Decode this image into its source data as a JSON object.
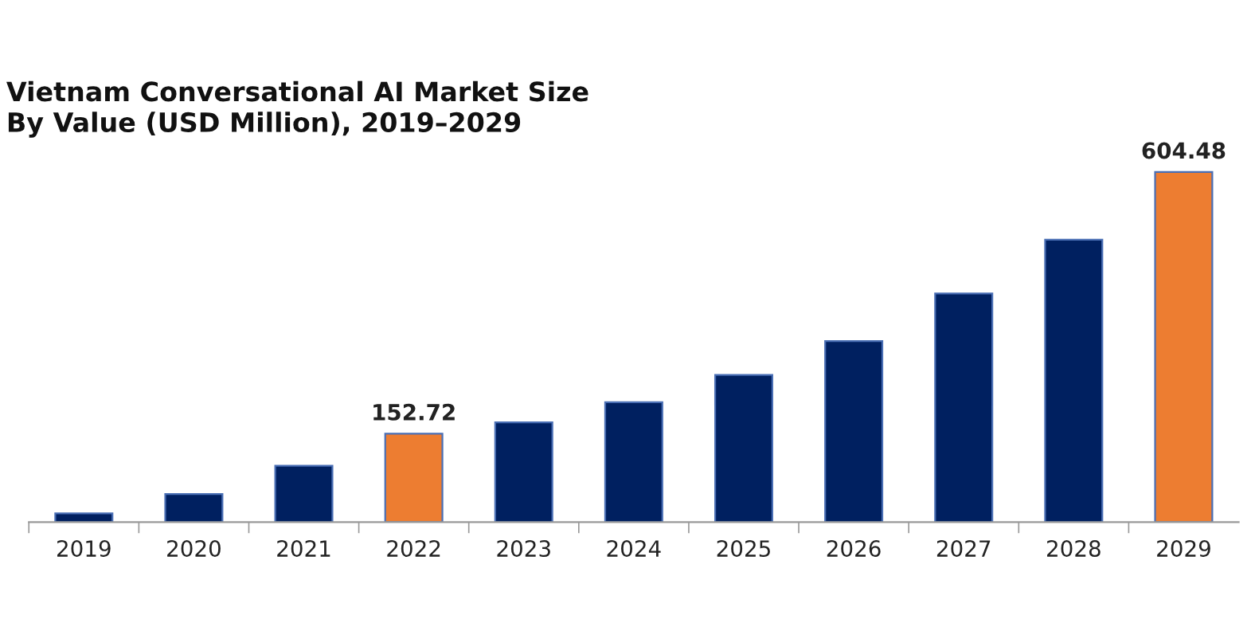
{
  "chart_data": {
    "type": "bar",
    "title": "Vietnam Conversational AI Market Size\nBy Value (USD Million), 2019–2029",
    "categories": [
      "2019",
      "2020",
      "2021",
      "2022",
      "2023",
      "2024",
      "2025",
      "2026",
      "2027",
      "2028",
      "2029"
    ],
    "values": [
      15.1,
      48.5,
      97.3,
      152.72,
      172.3,
      206.9,
      254.1,
      312.5,
      394.6,
      487.7,
      604.48
    ],
    "colors": [
      "#002060",
      "#002060",
      "#002060",
      "#ed7d31",
      "#002060",
      "#002060",
      "#002060",
      "#002060",
      "#002060",
      "#002060",
      "#ed7d31"
    ],
    "value_labels": [
      null,
      null,
      null,
      "152.72",
      null,
      null,
      null,
      null,
      null,
      null,
      "604.48"
    ],
    "tick_labels": "x",
    "grid": false,
    "legend": false
  }
}
